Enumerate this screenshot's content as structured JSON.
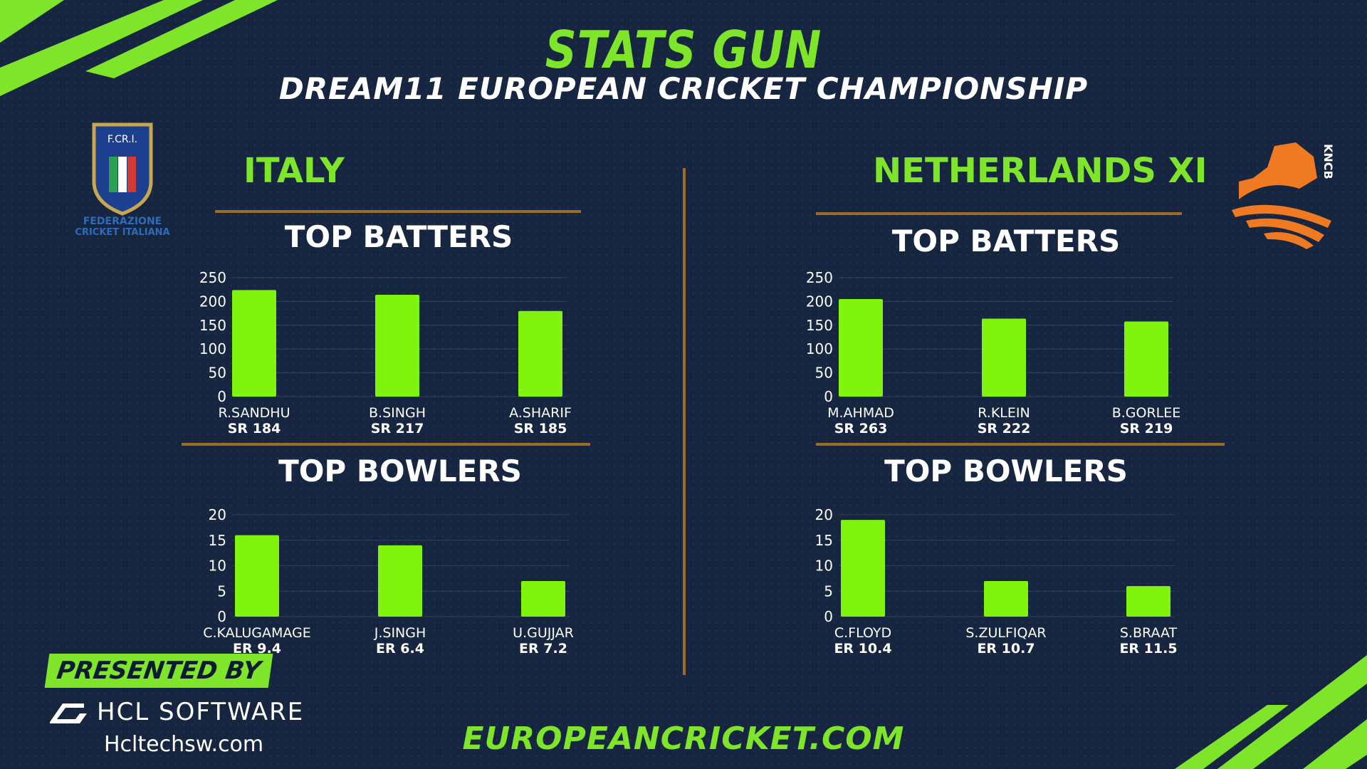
{
  "header": {
    "title": "STATS GUN",
    "subtitle": "DREAM11 EUROPEAN CRICKET CHAMPIONSHIP"
  },
  "teams": {
    "left": {
      "name": "ITALY",
      "logo_text_top": "F.CR.I.",
      "logo_text_bottom_1": "FEDERAZIONE",
      "logo_text_bottom_2": "CRICKET ITALIANA"
    },
    "right": {
      "name": "NETHERLANDS XI",
      "logo_text": "KNCB"
    }
  },
  "sections": {
    "batters_title": "TOP BATTERS",
    "bowlers_title": "TOP BOWLERS"
  },
  "chart_data": [
    {
      "id": "italy-batters",
      "type": "bar",
      "title": "TOP BATTERS",
      "categories": [
        "R.SANDHU",
        "B.SINGH",
        "A.SHARIF"
      ],
      "sublabels": [
        "SR 184",
        "SR 217",
        "SR 185"
      ],
      "values": [
        224,
        214,
        180
      ],
      "ylim": [
        0,
        250
      ],
      "yticks": [
        0,
        50,
        100,
        150,
        200,
        250
      ],
      "bar_color": "#80f30f"
    },
    {
      "id": "italy-bowlers",
      "type": "bar",
      "title": "TOP BOWLERS",
      "categories": [
        "C.KALUGAMAGE",
        "J.SINGH",
        "U.GUJJAR"
      ],
      "sublabels": [
        "ER 9.4",
        "ER 6.4",
        "ER 7.2"
      ],
      "values": [
        16,
        14,
        7
      ],
      "ylim": [
        0,
        20
      ],
      "yticks": [
        0,
        5,
        10,
        15,
        20
      ],
      "bar_color": "#80f30f"
    },
    {
      "id": "netherlands-batters",
      "type": "bar",
      "title": "TOP BATTERS",
      "categories": [
        "M.AHMAD",
        "R.KLEIN",
        "B.GORLEE"
      ],
      "sublabels": [
        "SR 263",
        "SR 222",
        "SR 219"
      ],
      "values": [
        205,
        164,
        158
      ],
      "ylim": [
        0,
        250
      ],
      "yticks": [
        0,
        50,
        100,
        150,
        200,
        250
      ],
      "bar_color": "#80f30f"
    },
    {
      "id": "netherlands-bowlers",
      "type": "bar",
      "title": "TOP BOWLERS",
      "categories": [
        "C.FLOYD",
        "S.ZULFIQAR",
        "S.BRAAT"
      ],
      "sublabels": [
        "ER 10.4",
        "ER 10.7",
        "ER 11.5"
      ],
      "values": [
        19,
        7,
        6
      ],
      "ylim": [
        0,
        20
      ],
      "yticks": [
        0,
        5,
        10,
        15,
        20
      ],
      "bar_color": "#80f30f"
    }
  ],
  "footer": {
    "presented_by": "PRESENTED BY",
    "sponsor": "HCL SOFTWARE",
    "sponsor_url": "Hcltechsw.com",
    "site_url": "EUROPEANCRICKET.COM"
  },
  "colors": {
    "background": "#162540",
    "accent_green": "#7fe52a",
    "divider": "#9c6b26"
  }
}
